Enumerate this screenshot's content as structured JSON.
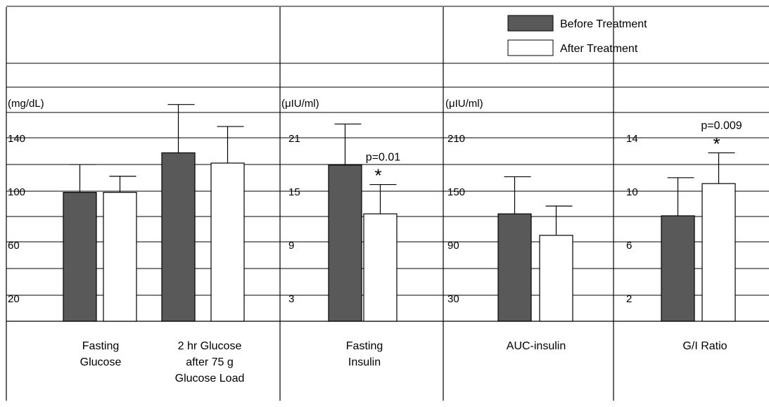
{
  "chart_data": {
    "type": "bar",
    "legend": {
      "position": "top-right",
      "entries": [
        "Before Treatment",
        "After Treatment"
      ]
    },
    "series_colors": {
      "before": "#595959",
      "after": "#ffffff"
    },
    "significance_marker": "*",
    "panels": [
      {
        "unit": "(mg/dL)",
        "yticks": [
          "140",
          "100",
          "60",
          "20"
        ],
        "ylim": [
          0,
          180
        ],
        "categories": [
          {
            "label": [
              "Fasting",
              "Glucose"
            ],
            "before": 88,
            "before_err": 19,
            "after": 88,
            "after_err": 11
          },
          {
            "label": [
              "2 hr Glucose",
              "after 75 g",
              "Glucose Load"
            ],
            "before": 115,
            "before_err": 33,
            "after": 108,
            "after_err": 25
          }
        ]
      },
      {
        "unit": "(μIU/ml)",
        "yticks": [
          "21",
          "15",
          "9",
          "3"
        ],
        "ylim": [
          0,
          27
        ],
        "categories": [
          {
            "label": [
              "Fasting",
              "Insulin"
            ],
            "before": 16,
            "before_err": 4.2,
            "after": 11,
            "after_err": 3.0,
            "annotation": "p=0.01",
            "significant": true
          }
        ]
      },
      {
        "unit": "(μIU/ml)",
        "yticks": [
          "210",
          "150",
          "90",
          "30"
        ],
        "ylim": [
          0,
          270
        ],
        "categories": [
          {
            "label": [
              "AUC-insulin"
            ],
            "before": 110,
            "before_err": 38,
            "after": 88,
            "after_err": 30
          }
        ]
      },
      {
        "unit": "",
        "yticks": [
          "14",
          "10",
          "6",
          "2"
        ],
        "ylim": [
          0,
          18
        ],
        "categories": [
          {
            "label": [
              "G/I Ratio"
            ],
            "before": 7.2,
            "before_err": 2.6,
            "after": 9.4,
            "after_err": 2.1,
            "annotation": "p=0.009",
            "significant": true
          }
        ]
      }
    ]
  }
}
